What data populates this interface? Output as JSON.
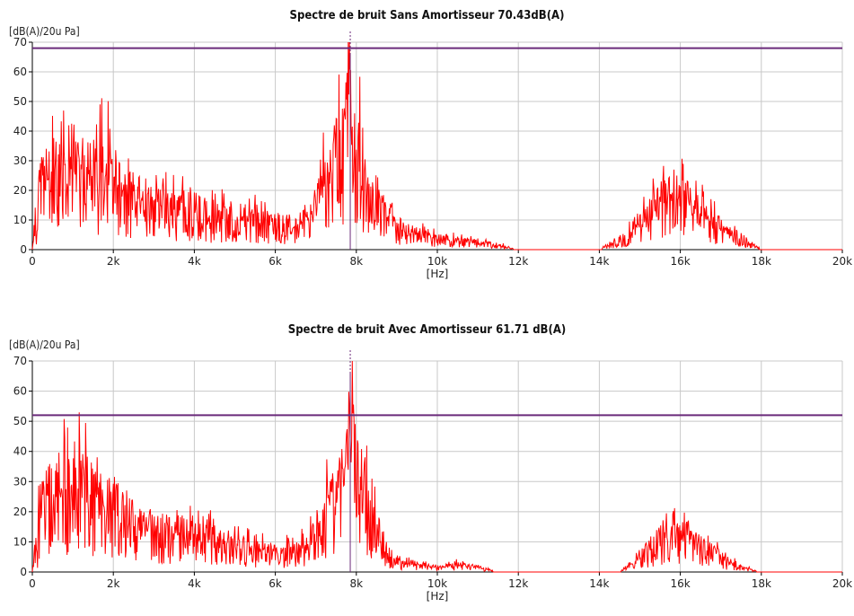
{
  "chart_data": [
    {
      "type": "line",
      "title": "Spectre de bruit Sans Amortisseur 70.43dB(A)",
      "ylabel": "[dB(A)/20u Pa]",
      "xlabel": "[Hz]",
      "xlim": [
        0,
        20000
      ],
      "ylim": [
        0,
        70
      ],
      "x_ticks": [
        0,
        2000,
        4000,
        6000,
        8000,
        10000,
        12000,
        14000,
        16000,
        18000,
        20000
      ],
      "x_tick_labels": [
        "0",
        "2k",
        "4k",
        "6k",
        "8k",
        "10k",
        "12k",
        "14k",
        "16k",
        "18k",
        "20k"
      ],
      "y_ticks": [
        0,
        10,
        20,
        30,
        40,
        50,
        60,
        70
      ],
      "y_tick_labels": [
        "0",
        "10",
        "20",
        "30",
        "40",
        "50",
        "60",
        "70"
      ],
      "grid": true,
      "reference_level": 68,
      "marker_frequency": 7850,
      "series_color": "#ff0000",
      "reference_color": "#6a2a7a",
      "series": [
        {
          "name": "",
          "x": [
            0,
            100,
            200,
            400,
            600,
            800,
            1000,
            1200,
            1400,
            1600,
            1800,
            2000,
            2500,
            3000,
            3500,
            4000,
            4500,
            5000,
            5500,
            6000,
            6500,
            7000,
            7200,
            7400,
            7600,
            7800,
            7850,
            7900,
            8000,
            8200,
            8400,
            8600,
            8800,
            9000,
            9500,
            10000,
            10500,
            11000,
            11500,
            12000,
            14000,
            14500,
            15000,
            15500,
            15800,
            16000,
            16200,
            16500,
            17000,
            17500,
            18000,
            18500,
            20000
          ],
          "y": [
            0,
            20,
            28,
            32,
            35,
            38,
            37,
            40,
            34,
            32,
            38,
            30,
            24,
            20,
            19,
            17,
            15,
            14,
            13,
            11,
            10,
            18,
            28,
            35,
            42,
            55,
            68,
            50,
            46,
            38,
            28,
            20,
            15,
            10,
            7,
            5,
            4,
            3,
            2,
            0,
            0,
            4,
            12,
            20,
            26,
            24,
            20,
            16,
            10,
            5,
            0,
            0,
            0
          ]
        }
      ]
    },
    {
      "type": "line",
      "title": "Spectre de bruit Avec Amortisseur 61.71 dB(A)",
      "ylabel": "[dB(A)/20u Pa]",
      "xlabel": "[Hz]",
      "xlim": [
        0,
        20000
      ],
      "ylim": [
        0,
        70
      ],
      "x_ticks": [
        0,
        2000,
        4000,
        6000,
        8000,
        10000,
        12000,
        14000,
        16000,
        18000,
        20000
      ],
      "x_tick_labels": [
        "0",
        "2k",
        "4k",
        "6k",
        "8k",
        "10k",
        "12k",
        "14k",
        "16k",
        "18k",
        "20k"
      ],
      "y_ticks": [
        0,
        10,
        20,
        30,
        40,
        50,
        60,
        70
      ],
      "y_tick_labels": [
        "0",
        "10",
        "20",
        "30",
        "40",
        "50",
        "60",
        "70"
      ],
      "grid": true,
      "reference_level": 52,
      "marker_frequency": 7850,
      "series_color": "#ff0000",
      "reference_color": "#6a2a7a",
      "series": [
        {
          "name": "",
          "x": [
            0,
            100,
            200,
            400,
            600,
            800,
            1000,
            1200,
            1400,
            1600,
            1800,
            2000,
            2500,
            3000,
            3500,
            4000,
            4500,
            5000,
            5500,
            6000,
            6500,
            7000,
            7200,
            7400,
            7600,
            7800,
            7900,
            8000,
            8200,
            8400,
            8600,
            8800,
            9000,
            9500,
            10000,
            10500,
            11000,
            11500,
            12000,
            14500,
            15000,
            15500,
            15800,
            16000,
            16500,
            17000,
            17500,
            18000,
            20000
          ],
          "y": [
            0,
            22,
            28,
            31,
            33,
            36,
            35,
            38,
            32,
            30,
            35,
            28,
            22,
            18,
            17,
            16,
            14,
            12,
            10,
            8,
            9,
            15,
            24,
            30,
            36,
            44,
            52,
            42,
            32,
            22,
            14,
            8,
            5,
            3,
            2,
            3,
            2,
            0,
            0,
            0,
            6,
            14,
            20,
            16,
            12,
            6,
            2,
            0,
            0
          ]
        }
      ]
    }
  ]
}
